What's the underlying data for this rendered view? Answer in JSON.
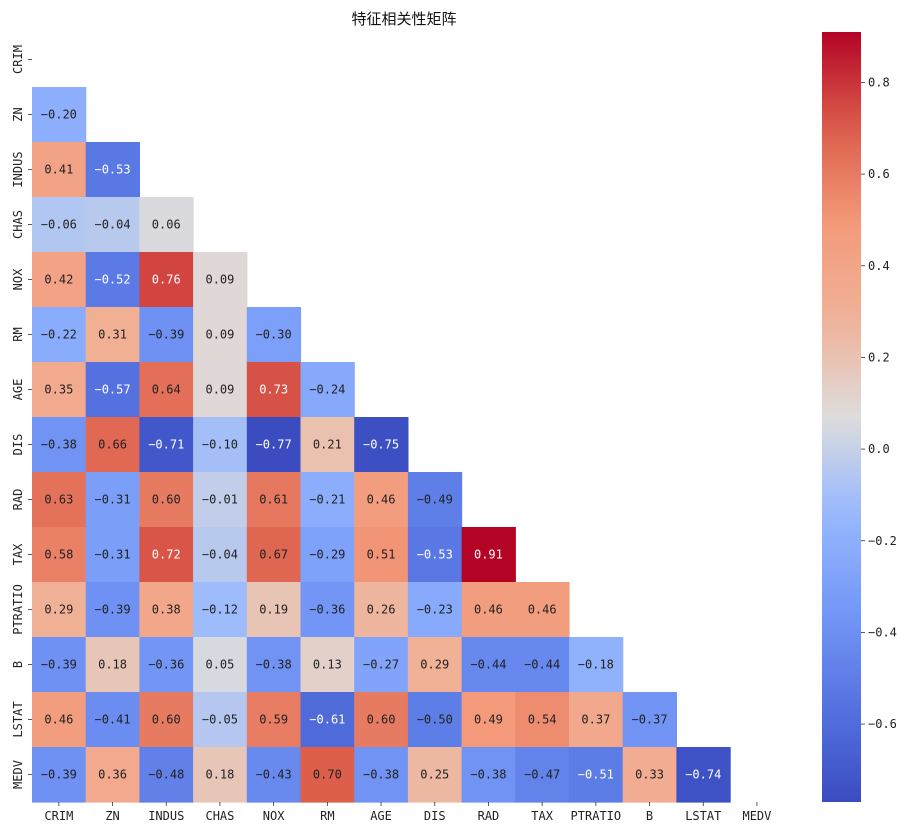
{
  "chart_data": {
    "type": "heatmap",
    "title": "特征相关性矩阵",
    "mask": "upper-triangle-including-diagonal",
    "colormap": "coolwarm",
    "categories": [
      "CRIM",
      "ZN",
      "INDUS",
      "CHAS",
      "NOX",
      "RM",
      "AGE",
      "DIS",
      "RAD",
      "TAX",
      "PTRATIO",
      "B",
      "LSTAT",
      "MEDV"
    ],
    "values": [
      [
        null,
        null,
        null,
        null,
        null,
        null,
        null,
        null,
        null,
        null,
        null,
        null,
        null,
        null
      ],
      [
        -0.2,
        null,
        null,
        null,
        null,
        null,
        null,
        null,
        null,
        null,
        null,
        null,
        null,
        null
      ],
      [
        0.41,
        -0.53,
        null,
        null,
        null,
        null,
        null,
        null,
        null,
        null,
        null,
        null,
        null,
        null
      ],
      [
        -0.06,
        -0.04,
        0.06,
        null,
        null,
        null,
        null,
        null,
        null,
        null,
        null,
        null,
        null,
        null
      ],
      [
        0.42,
        -0.52,
        0.76,
        0.09,
        null,
        null,
        null,
        null,
        null,
        null,
        null,
        null,
        null,
        null
      ],
      [
        -0.22,
        0.31,
        -0.39,
        0.09,
        -0.3,
        null,
        null,
        null,
        null,
        null,
        null,
        null,
        null,
        null
      ],
      [
        0.35,
        -0.57,
        0.64,
        0.09,
        0.73,
        -0.24,
        null,
        null,
        null,
        null,
        null,
        null,
        null,
        null
      ],
      [
        -0.38,
        0.66,
        -0.71,
        -0.1,
        -0.77,
        0.21,
        -0.75,
        null,
        null,
        null,
        null,
        null,
        null,
        null
      ],
      [
        0.63,
        -0.31,
        0.6,
        -0.01,
        0.61,
        -0.21,
        0.46,
        -0.49,
        null,
        null,
        null,
        null,
        null,
        null
      ],
      [
        0.58,
        -0.31,
        0.72,
        -0.04,
        0.67,
        -0.29,
        0.51,
        -0.53,
        0.91,
        null,
        null,
        null,
        null,
        null
      ],
      [
        0.29,
        -0.39,
        0.38,
        -0.12,
        0.19,
        -0.36,
        0.26,
        -0.23,
        0.46,
        0.46,
        null,
        null,
        null,
        null
      ],
      [
        -0.39,
        0.18,
        -0.36,
        0.05,
        -0.38,
        0.13,
        -0.27,
        0.29,
        -0.44,
        -0.44,
        -0.18,
        null,
        null,
        null
      ],
      [
        0.46,
        -0.41,
        0.6,
        -0.05,
        0.59,
        -0.61,
        0.6,
        -0.5,
        0.49,
        0.54,
        0.37,
        -0.37,
        null,
        null
      ],
      [
        -0.39,
        0.36,
        -0.48,
        0.18,
        -0.43,
        0.7,
        -0.38,
        0.25,
        -0.38,
        -0.47,
        -0.51,
        0.33,
        -0.74,
        null
      ]
    ],
    "color_range": [
      -0.77,
      0.91
    ],
    "colorbar_ticks": [
      "0.8",
      "0.6",
      "0.4",
      "0.2",
      "0.0",
      "−0.2",
      "−0.4",
      "−0.6"
    ],
    "colorbar_tick_values": [
      0.8,
      0.6,
      0.4,
      0.2,
      0.0,
      -0.2,
      -0.4,
      -0.6
    ]
  }
}
